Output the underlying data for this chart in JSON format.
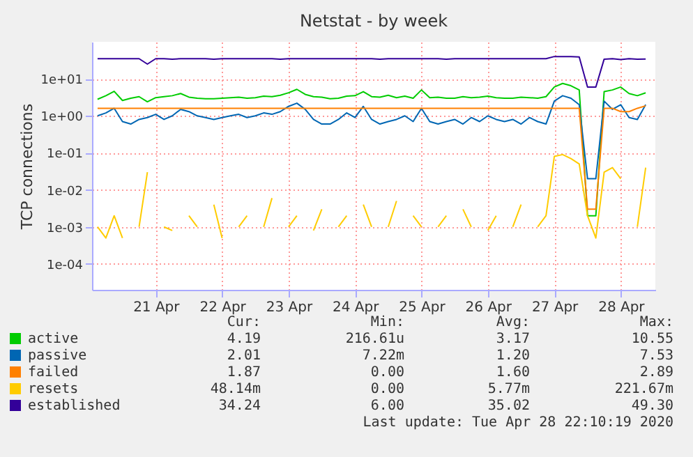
{
  "chart_data": {
    "type": "line",
    "title": "Netstat - by week",
    "ylabel": "TCP connections",
    "log": true,
    "grid": true,
    "legend": "bottom left",
    "marker": "none",
    "line_style": "solid",
    "ylim": [
      2e-05,
      100
    ],
    "yticks": [
      {
        "value": 0.0001,
        "label": "1e-04"
      },
      {
        "value": 0.001,
        "label": "1e-03"
      },
      {
        "value": 0.01,
        "label": "1e-02"
      },
      {
        "value": 0.1,
        "label": "1e-01"
      },
      {
        "value": 1,
        "label": "1e+00"
      },
      {
        "value": 10,
        "label": "1e+01"
      }
    ],
    "xlim": [
      "2020-04-20T13:00",
      "2020-04-29T00:30"
    ],
    "xticks": [
      {
        "value": "2020-04-21T12:00",
        "label": "21 Apr"
      },
      {
        "value": "2020-04-22T12:00",
        "label": "22 Apr"
      },
      {
        "value": "2020-04-23T12:00",
        "label": "23 Apr"
      },
      {
        "value": "2020-04-24T12:00",
        "label": "24 Apr"
      },
      {
        "value": "2020-04-25T12:00",
        "label": "25 Apr"
      },
      {
        "value": "2020-04-26T12:00",
        "label": "26 Apr"
      },
      {
        "value": "2020-04-27T12:00",
        "label": "27 Apr"
      },
      {
        "value": "2020-04-28T12:00",
        "label": "28 Apr"
      }
    ],
    "x": [
      "2020-04-20T15:00",
      "2020-04-20T18:00",
      "2020-04-20T21:00",
      "2020-04-21T00:00",
      "2020-04-21T03:00",
      "2020-04-21T06:00",
      "2020-04-21T09:00",
      "2020-04-21T12:00",
      "2020-04-21T15:00",
      "2020-04-21T18:00",
      "2020-04-21T21:00",
      "2020-04-22T00:00",
      "2020-04-22T03:00",
      "2020-04-22T06:00",
      "2020-04-22T09:00",
      "2020-04-22T12:00",
      "2020-04-22T15:00",
      "2020-04-22T18:00",
      "2020-04-22T21:00",
      "2020-04-23T00:00",
      "2020-04-23T03:00",
      "2020-04-23T06:00",
      "2020-04-23T09:00",
      "2020-04-23T12:00",
      "2020-04-23T15:00",
      "2020-04-23T18:00",
      "2020-04-23T21:00",
      "2020-04-24T00:00",
      "2020-04-24T03:00",
      "2020-04-24T06:00",
      "2020-04-24T09:00",
      "2020-04-24T12:00",
      "2020-04-24T15:00",
      "2020-04-24T18:00",
      "2020-04-24T21:00",
      "2020-04-25T00:00",
      "2020-04-25T03:00",
      "2020-04-25T06:00",
      "2020-04-25T09:00",
      "2020-04-25T12:00",
      "2020-04-25T15:00",
      "2020-04-25T18:00",
      "2020-04-25T21:00",
      "2020-04-26T00:00",
      "2020-04-26T03:00",
      "2020-04-26T06:00",
      "2020-04-26T09:00",
      "2020-04-26T12:00",
      "2020-04-26T15:00",
      "2020-04-26T18:00",
      "2020-04-26T21:00",
      "2020-04-27T00:00",
      "2020-04-27T03:00",
      "2020-04-27T06:00",
      "2020-04-27T09:00",
      "2020-04-27T12:00",
      "2020-04-27T15:00",
      "2020-04-27T18:00",
      "2020-04-27T21:00",
      "2020-04-28T00:00",
      "2020-04-28T03:00",
      "2020-04-28T06:00",
      "2020-04-28T09:00",
      "2020-04-28T12:00",
      "2020-04-28T15:00",
      "2020-04-28T18:00",
      "2020-04-28T21:00"
    ],
    "series": [
      {
        "name": "active",
        "color": "#00cc00",
        "values": [
          2.8,
          3.5,
          4.6,
          2.6,
          3.0,
          3.3,
          2.4,
          3.1,
          3.3,
          3.5,
          4.0,
          3.2,
          3.0,
          2.9,
          2.9,
          3.0,
          3.1,
          3.2,
          3.0,
          3.1,
          3.4,
          3.3,
          3.6,
          4.2,
          5.2,
          3.8,
          3.3,
          3.2,
          2.9,
          3.0,
          3.4,
          3.5,
          4.5,
          3.3,
          3.2,
          3.6,
          3.1,
          3.4,
          3.0,
          5.0,
          3.1,
          3.2,
          3.0,
          3.0,
          3.3,
          3.1,
          3.2,
          3.4,
          3.1,
          3.0,
          3.0,
          3.2,
          3.1,
          3.0,
          3.3,
          6.0,
          7.5,
          6.5,
          5.0,
          0.002,
          0.002,
          4.5,
          5.0,
          6.0,
          4.0,
          3.5,
          4.19
        ]
      },
      {
        "name": "passive",
        "color": "#0066b3",
        "values": [
          1.0,
          1.2,
          1.6,
          0.7,
          0.6,
          0.8,
          0.9,
          1.1,
          0.8,
          1.0,
          1.5,
          1.3,
          1.0,
          0.9,
          0.8,
          0.9,
          1.0,
          1.1,
          0.9,
          1.0,
          1.2,
          1.1,
          1.3,
          1.8,
          2.2,
          1.5,
          0.8,
          0.6,
          0.6,
          0.8,
          1.2,
          0.9,
          1.8,
          0.8,
          0.6,
          0.7,
          0.8,
          1.0,
          0.7,
          1.6,
          0.7,
          0.6,
          0.7,
          0.8,
          0.6,
          0.9,
          0.7,
          1.0,
          0.8,
          0.7,
          0.8,
          0.6,
          0.9,
          0.7,
          0.6,
          2.5,
          3.5,
          3.0,
          2.0,
          0.02,
          0.02,
          2.5,
          1.5,
          2.0,
          0.9,
          0.8,
          2.01
        ]
      },
      {
        "name": "failed",
        "color": "#ff8000",
        "values": [
          1.6,
          1.6,
          1.6,
          1.6,
          1.6,
          1.6,
          1.6,
          1.6,
          1.6,
          1.6,
          1.6,
          1.6,
          1.6,
          1.6,
          1.6,
          1.6,
          1.6,
          1.6,
          1.6,
          1.6,
          1.6,
          1.6,
          1.6,
          1.6,
          1.6,
          1.6,
          1.6,
          1.6,
          1.6,
          1.6,
          1.6,
          1.6,
          1.6,
          1.6,
          1.6,
          1.6,
          1.6,
          1.6,
          1.6,
          1.6,
          1.6,
          1.6,
          1.6,
          1.6,
          1.6,
          1.6,
          1.6,
          1.6,
          1.6,
          1.6,
          1.6,
          1.6,
          1.6,
          1.6,
          1.6,
          1.6,
          1.6,
          1.6,
          1.6,
          0.003,
          0.003,
          1.6,
          1.6,
          1.3,
          1.3,
          1.6,
          1.87
        ]
      },
      {
        "name": "resets",
        "color": "#ffcc00",
        "values": [
          0.001,
          0.0005,
          0.002,
          0.0005,
          null,
          0.001,
          0.03,
          null,
          0.001,
          0.0008,
          null,
          0.002,
          0.001,
          null,
          0.004,
          0.0005,
          null,
          0.001,
          0.002,
          null,
          0.001,
          0.006,
          null,
          0.001,
          0.002,
          null,
          0.0008,
          0.003,
          null,
          0.001,
          0.002,
          null,
          0.004,
          0.001,
          null,
          0.001,
          0.005,
          null,
          0.002,
          0.001,
          null,
          0.001,
          0.002,
          null,
          0.003,
          0.001,
          null,
          0.0008,
          0.002,
          null,
          0.001,
          0.004,
          null,
          0.001,
          0.002,
          0.08,
          0.09,
          0.07,
          0.05,
          0.002,
          0.0005,
          0.03,
          0.04,
          0.02,
          null,
          0.001,
          0.04
        ]
      },
      {
        "name": "established",
        "color": "#330099",
        "values": [
          35,
          35,
          35,
          35,
          35,
          35,
          25,
          35,
          35,
          34,
          35,
          35,
          35,
          35,
          34,
          35,
          35,
          35,
          35,
          35,
          35,
          35,
          34,
          35,
          35,
          35,
          35,
          35,
          35,
          35,
          35,
          35,
          35,
          35,
          34,
          35,
          35,
          35,
          35,
          35,
          35,
          35,
          34,
          35,
          35,
          35,
          35,
          35,
          35,
          35,
          35,
          35,
          35,
          35,
          35,
          40,
          40,
          40,
          39,
          6,
          6,
          34,
          35,
          33,
          35,
          34,
          34.24
        ]
      }
    ],
    "annotations": [
      "Cur: Min: Avg: Max:",
      "4.19 216.61u 3.17 10.55",
      "2.01 7.22m 1.20 7.53",
      "1.87 0.00 1.60 2.89",
      "48.14m 0.00 5.77m 221.67m",
      "34.24 6.00 35.02 49.30",
      "Last update: Tue Apr 28 22:10:19 2020"
    ]
  }
}
